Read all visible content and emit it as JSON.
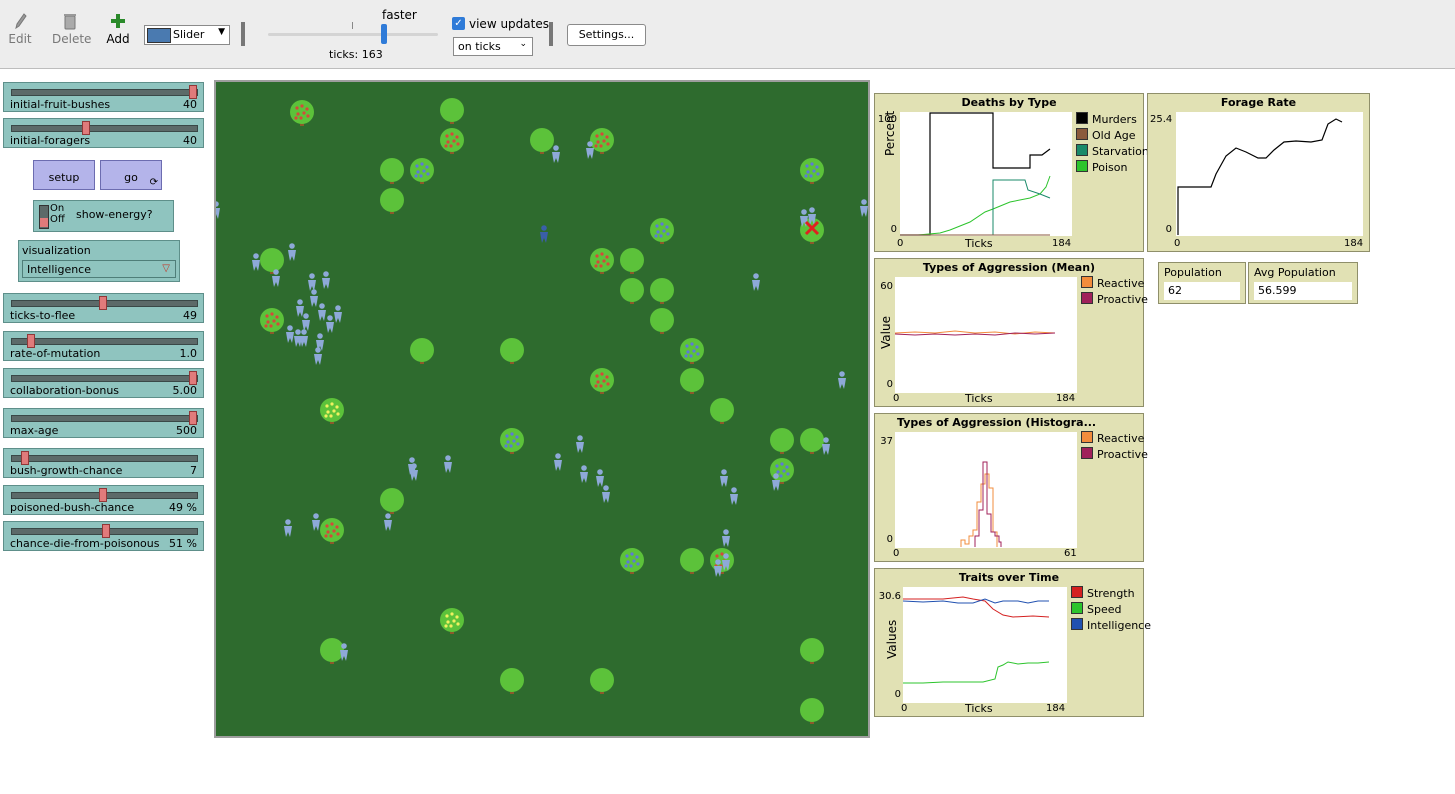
{
  "toolbar": {
    "edit_label": "Edit",
    "delete_label": "Delete",
    "add_label": "Add",
    "widget_type": "Slider",
    "speed_label": "faster",
    "ticks_text": "ticks: 163",
    "view_updates_label": "view updates",
    "view_updates_checked": true,
    "update_mode": "on ticks",
    "settings_label": "Settings..."
  },
  "sliders": [
    {
      "label": "initial-fruit-bushes",
      "value": "40",
      "fraction": 0.98
    },
    {
      "label": "initial-foragers",
      "value": "40",
      "fraction": 0.4
    },
    {
      "label": "ticks-to-flee",
      "value": "49",
      "fraction": 0.49
    },
    {
      "label": "rate-of-mutation",
      "value": "1.0",
      "fraction": 0.1
    },
    {
      "label": "collaboration-bonus",
      "value": "5.00",
      "fraction": 0.98
    },
    {
      "label": "max-age",
      "value": "500",
      "fraction": 0.98
    },
    {
      "label": "bush-growth-chance",
      "value": "7",
      "fraction": 0.07
    },
    {
      "label": "poisoned-bush-chance",
      "value": "49 %",
      "fraction": 0.49
    },
    {
      "label": "chance-die-from-poisonous",
      "value": "51 %",
      "fraction": 0.51
    }
  ],
  "buttons": {
    "setup": "setup",
    "go": "go"
  },
  "switch": {
    "on": "On",
    "off": "Off",
    "label": "show-energy?"
  },
  "chooser": {
    "label": "visualization",
    "value": "Intelligence"
  },
  "plots": {
    "deaths": {
      "title": "Deaths by Type",
      "ylabel": "Percent",
      "xlabel": "Ticks",
      "ymin": "0",
      "ymax": "100",
      "xmin": "0",
      "xmax": "184",
      "legend": [
        {
          "name": "Murders",
          "color": "#000000"
        },
        {
          "name": "Old Age",
          "color": "#8b5a3c"
        },
        {
          "name": "Starvation",
          "color": "#1a8a6a"
        },
        {
          "name": "Poison",
          "color": "#2cc42c"
        }
      ]
    },
    "forage": {
      "title": "Forage Rate",
      "ymin": "0",
      "ymax": "25.4",
      "xmin": "0",
      "xmax": "184"
    },
    "agg_mean": {
      "title": "Types of Aggression (Mean)",
      "ylabel": "Value",
      "xlabel": "Ticks",
      "ymin": "0",
      "ymax": "60",
      "xmin": "0",
      "xmax": "184",
      "legend": [
        {
          "name": "Reactive",
          "color": "#f28c3c"
        },
        {
          "name": "Proactive",
          "color": "#a0205a"
        }
      ]
    },
    "agg_hist": {
      "title": "Types of Aggression (Histogra...",
      "ymin": "0",
      "ymax": "37",
      "xmin": "0",
      "xmax": "61",
      "legend": [
        {
          "name": "Reactive",
          "color": "#f28c3c"
        },
        {
          "name": "Proactive",
          "color": "#a0205a"
        }
      ]
    },
    "traits": {
      "title": "Traits over Time",
      "ylabel": "Values",
      "xlabel": "Ticks",
      "ymin": "0",
      "ymax": "30.6",
      "xmin": "0",
      "xmax": "184",
      "legend": [
        {
          "name": "Strength",
          "color": "#d42020"
        },
        {
          "name": "Speed",
          "color": "#2cc42c"
        },
        {
          "name": "Intelligence",
          "color": "#2050b0"
        }
      ]
    }
  },
  "monitors": {
    "population": {
      "label": "Population",
      "value": "62"
    },
    "avg_population": {
      "label": "Avg Population",
      "value": "56.599"
    }
  },
  "colors": {
    "world": "#2e6b2e",
    "bush": "#5cc23a",
    "forager": "#8ea9d8",
    "slider": "#8fc4bf",
    "button": "#b4b4ea",
    "plot": "#e1e1b4"
  }
}
